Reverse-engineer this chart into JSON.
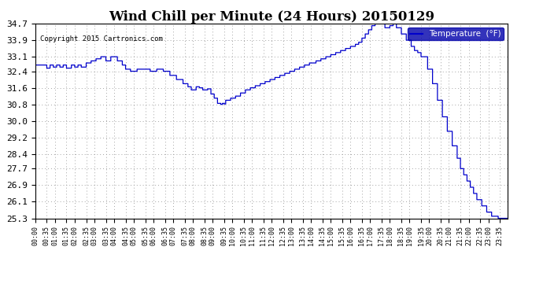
{
  "title": "Wind Chill per Minute (24 Hours) 20150129",
  "copyright_text": "Copyright 2015 Cartronics.com",
  "legend_label": "Temperature  (°F)",
  "line_color": "#0000cc",
  "background_color": "#ffffff",
  "plot_background": "#ffffff",
  "grid_color": "#aaaaaa",
  "ylim": [
    25.3,
    34.7
  ],
  "yticks": [
    25.3,
    26.1,
    26.9,
    27.7,
    28.4,
    29.2,
    30.0,
    30.8,
    31.6,
    32.4,
    33.1,
    33.9,
    34.7
  ],
  "xlabel_fontsize": 6.0,
  "ylabel_fontsize": 8,
  "title_fontsize": 12,
  "figsize": [
    6.9,
    3.75
  ],
  "dpi": 100
}
